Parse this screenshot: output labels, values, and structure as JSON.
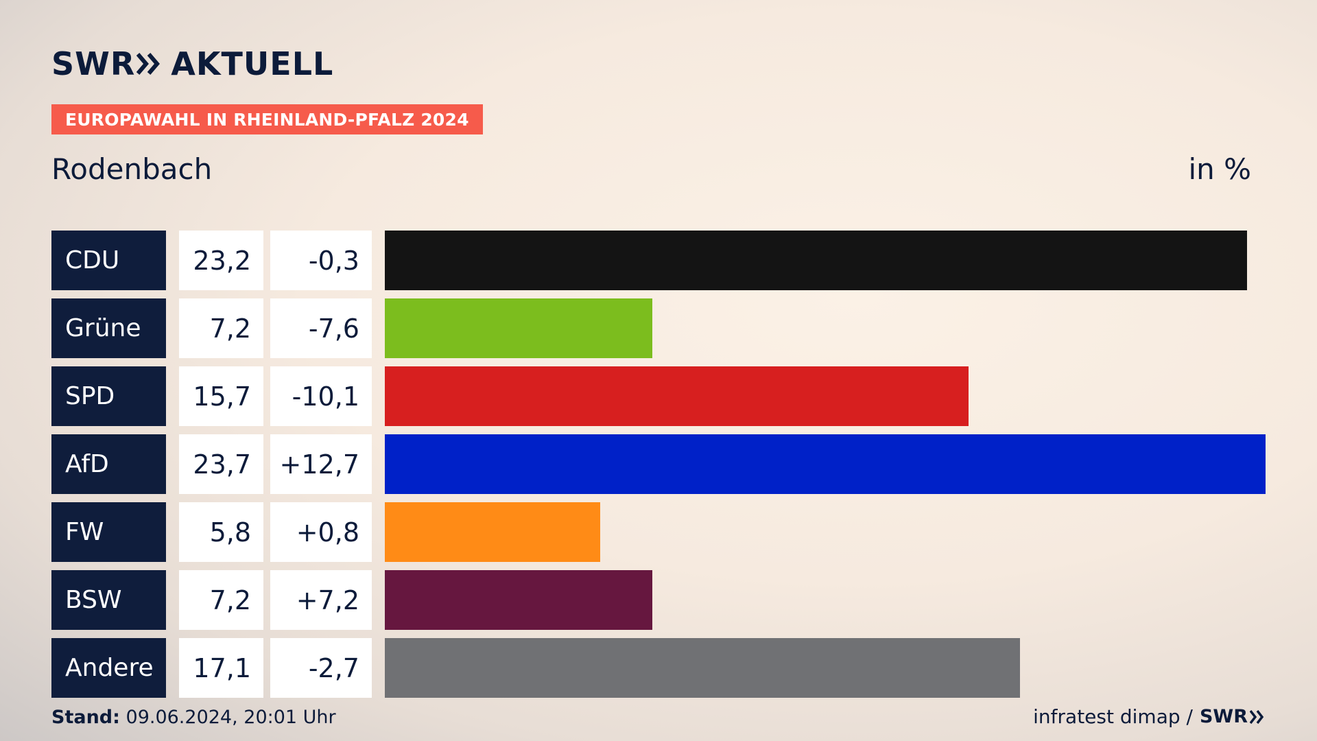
{
  "header": {
    "logo_swr": "SWR",
    "logo_aktuell": "AKTUELL",
    "subtitle": "EUROPAWAHL IN RHEINLAND-PFALZ 2024",
    "location": "Rodenbach",
    "unit": "in %"
  },
  "chart_data": {
    "type": "bar",
    "orientation": "horizontal",
    "title": "Rodenbach",
    "unit": "in %",
    "categories": [
      "CDU",
      "Grüne",
      "SPD",
      "AfD",
      "FW",
      "BSW",
      "Andere"
    ],
    "values": [
      23.2,
      7.2,
      15.7,
      23.7,
      5.8,
      7.2,
      17.1
    ],
    "value_labels": [
      "23,2",
      "7,2",
      "15,7",
      "23,7",
      "5,8",
      "7,2",
      "17,1"
    ],
    "changes": [
      -0.3,
      -7.6,
      -10.1,
      12.7,
      0.8,
      7.2,
      -2.7
    ],
    "change_labels": [
      "-0,3",
      "-7,6",
      "-10,1",
      "+12,7",
      "+0,8",
      "+7,2",
      "-2,7"
    ],
    "colors": [
      "#141414",
      "#7cbd1e",
      "#d71f1f",
      "#0021c8",
      "#ff8b16",
      "#66173f",
      "#707174"
    ],
    "xlim": [
      0,
      23.7
    ],
    "grid": false,
    "legend": "none"
  },
  "footer": {
    "stand_label": "Stand:",
    "stand_value": "09.06.2024, 20:01 Uhr",
    "source": "infratest dimap /",
    "source_brand": "SWR"
  }
}
